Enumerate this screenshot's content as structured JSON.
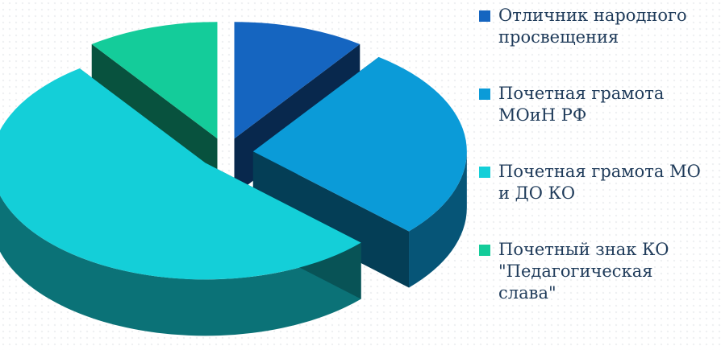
{
  "chart_data": {
    "type": "pie",
    "categories": [
      "Отличник народного\nпросвещения",
      "Почетная грамота\nМОиН РФ",
      "Почетная грамота МО\nи ДО КО",
      "Почетный знак КО\n\"Педагогическая\nслава\""
    ],
    "values": [
      10,
      27,
      53,
      10
    ],
    "colors": [
      "#1565c0",
      "#0b9bd8",
      "#14cfd8",
      "#14cc9a"
    ],
    "exploded": true,
    "three_d": true,
    "legend_position": "right",
    "title": ""
  }
}
